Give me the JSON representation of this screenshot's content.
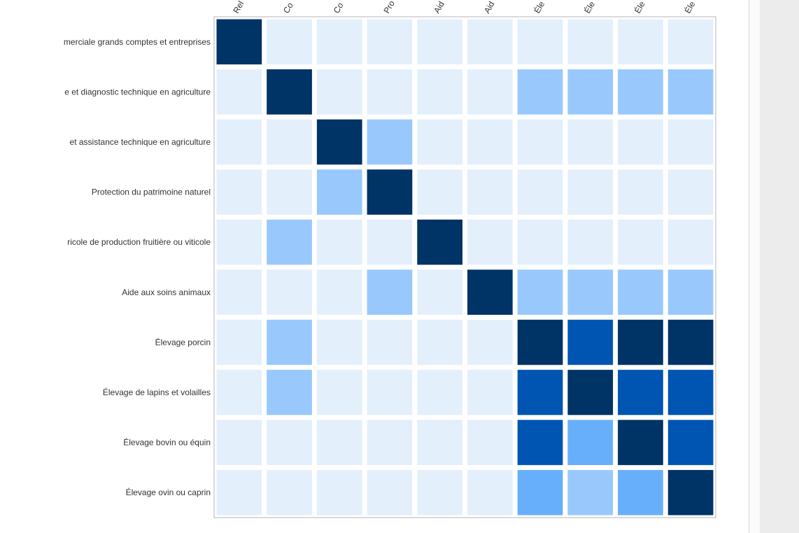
{
  "chart_data": {
    "type": "heatmap",
    "title": "",
    "xlabel": "",
    "ylabel": "",
    "rows": [
      "merciale grands comptes et entreprises",
      "e et diagnostic technique en agriculture",
      "et assistance technique en agriculture",
      "Protection du patrimoine naturel",
      "ricole de production fruitière ou viticole",
      "Aide aux soins animaux",
      "Élevage porcin",
      "Élevage de lapins et volailles",
      "Élevage bovin ou équin",
      "Élevage ovin ou caprin"
    ],
    "columns": [
      "Rel",
      "Co",
      "Co",
      "Pro",
      "Aid",
      "Aid",
      "Éle",
      "Éle",
      "Éle",
      "Éle"
    ],
    "levels": [
      [
        5,
        0,
        0,
        0,
        0,
        0,
        0,
        0,
        0,
        0
      ],
      [
        0,
        5,
        0,
        0,
        0,
        0,
        1,
        1,
        1,
        1
      ],
      [
        0,
        0,
        5,
        1,
        0,
        0,
        0,
        0,
        0,
        0
      ],
      [
        0,
        0,
        1,
        5,
        0,
        0,
        0,
        0,
        0,
        0
      ],
      [
        0,
        1,
        0,
        0,
        5,
        0,
        0,
        0,
        0,
        0
      ],
      [
        0,
        0,
        0,
        1,
        0,
        5,
        1,
        1,
        1,
        1
      ],
      [
        0,
        1,
        0,
        0,
        0,
        0,
        5,
        4,
        5,
        5
      ],
      [
        0,
        1,
        0,
        0,
        0,
        0,
        4,
        5,
        4,
        4
      ],
      [
        0,
        0,
        0,
        0,
        0,
        0,
        4,
        2,
        5,
        4
      ],
      [
        0,
        0,
        0,
        0,
        0,
        0,
        2,
        1,
        2,
        5
      ]
    ],
    "palette": [
      "#e4effc",
      "#99c9fc",
      "#68affb",
      "#3d8ee0",
      "#0055b2",
      "#003366"
    ],
    "grid": false,
    "legend": "none"
  }
}
